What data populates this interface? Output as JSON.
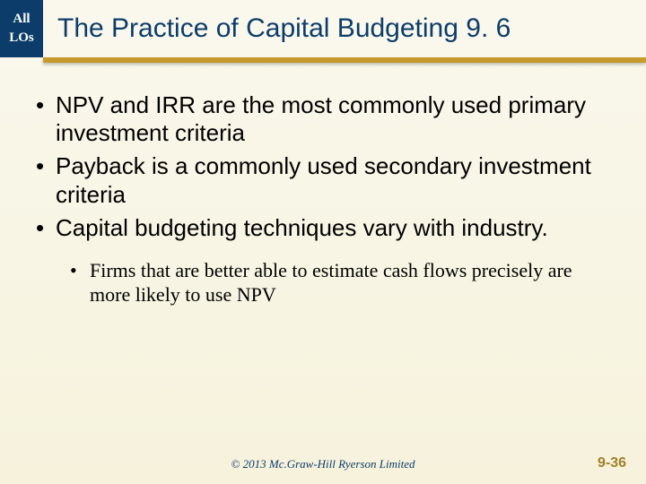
{
  "badge": {
    "line1": "All",
    "line2": "LOs"
  },
  "title": "The Practice of Capital Budgeting 9. 6",
  "bullets": [
    "NPV and IRR are the most commonly used primary investment criteria",
    "Payback is a commonly used secondary investment criteria",
    "Capital budgeting techniques vary with industry."
  ],
  "sub_bullets": [
    "Firms that are better able to estimate cash flows precisely are more likely to use NPV"
  ],
  "copyright": "© 2013 Mc.Graw-Hill Ryerson Limited",
  "page_number": "9-36",
  "colors": {
    "badge_bg": "#0c3d6a",
    "title_color": "#0c3d6a",
    "gold": "#c89a2a",
    "bg_top": "#faf8ed",
    "bg_bottom": "#f6f2dc",
    "pagenum": "#a08028"
  },
  "fonts": {
    "title_size": 30,
    "bullet_size": 26,
    "sub_bullet_size": 22,
    "footer_size": 13
  }
}
